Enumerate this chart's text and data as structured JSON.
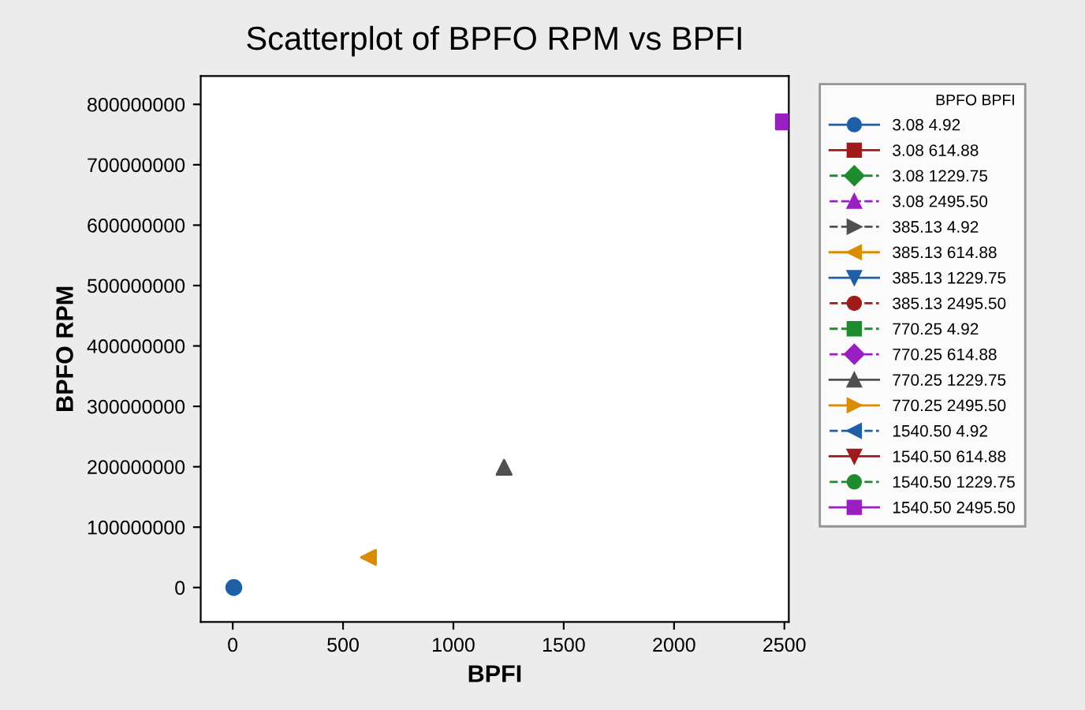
{
  "chart_data": {
    "type": "scatter",
    "title": "Scatterplot of BPFO RPM vs BPFI",
    "xlabel": "BPFI",
    "ylabel": "BPFO RPM",
    "legend_title": "BPFO BPFI",
    "legend": "right",
    "xlim": [
      -145,
      2520
    ],
    "xticks": [
      0,
      500,
      1000,
      1500,
      2000,
      2500
    ],
    "ylim": [
      -57000000,
      847000000
    ],
    "yticks": [
      0,
      100000000,
      200000000,
      300000000,
      400000000,
      500000000,
      600000000,
      700000000,
      800000000
    ],
    "series": [
      {
        "name": "3.08 4.92",
        "color": "#1f5fa8",
        "marker": "circle",
        "line_style": "solid",
        "x": [
          4.92
        ],
        "values": [
          0
        ]
      },
      {
        "name": "3.08 614.88",
        "color": "#a01c1c",
        "marker": "square",
        "line_style": "solid",
        "x": [
          null
        ],
        "values": [
          null
        ]
      },
      {
        "name": "3.08 1229.75",
        "color": "#1e8c2e",
        "marker": "diamond",
        "line_style": "dashed",
        "x": [
          null
        ],
        "values": [
          null
        ]
      },
      {
        "name": "3.08 2495.50",
        "color": "#9a1fc0",
        "marker": "triangle",
        "line_style": "dashed",
        "x": [
          null
        ],
        "values": [
          null
        ]
      },
      {
        "name": "385.13 4.92",
        "color": "#505050",
        "marker": "triangle_right",
        "line_style": "dashed",
        "x": [
          null
        ],
        "values": [
          null
        ]
      },
      {
        "name": "385.13 614.88",
        "color": "#d98c00",
        "marker": "triangle_left",
        "line_style": "solid",
        "x": [
          614.88
        ],
        "values": [
          50000000
        ]
      },
      {
        "name": "385.13 1229.75",
        "color": "#1f5fa8",
        "marker": "triangle_down",
        "line_style": "solid",
        "x": [
          null
        ],
        "values": [
          null
        ]
      },
      {
        "name": "385.13 2495.50",
        "color": "#a01c1c",
        "marker": "circle",
        "line_style": "dashed",
        "x": [
          null
        ],
        "values": [
          null
        ]
      },
      {
        "name": "770.25 4.92",
        "color": "#1e8c2e",
        "marker": "square",
        "line_style": "dashed",
        "x": [
          null
        ],
        "values": [
          null
        ]
      },
      {
        "name": "770.25 614.88",
        "color": "#9a1fc0",
        "marker": "diamond",
        "line_style": "dashed",
        "x": [
          null
        ],
        "values": [
          null
        ]
      },
      {
        "name": "770.25 1229.75",
        "color": "#505050",
        "marker": "triangle",
        "line_style": "solid",
        "x": [
          1229.75
        ],
        "values": [
          199000000
        ]
      },
      {
        "name": "770.25 2495.50",
        "color": "#d98c00",
        "marker": "triangle_right",
        "line_style": "solid",
        "x": [
          null
        ],
        "values": [
          null
        ]
      },
      {
        "name": "1540.50 4.92",
        "color": "#1f5fa8",
        "marker": "triangle_left",
        "line_style": "dashed",
        "x": [
          null
        ],
        "values": [
          null
        ]
      },
      {
        "name": "1540.50 614.88",
        "color": "#a01c1c",
        "marker": "triangle_down",
        "line_style": "solid",
        "x": [
          null
        ],
        "values": [
          null
        ]
      },
      {
        "name": "1540.50 1229.75",
        "color": "#1e8c2e",
        "marker": "circle",
        "line_style": "dashed",
        "x": [
          null
        ],
        "values": [
          null
        ]
      },
      {
        "name": "1540.50 2495.50",
        "color": "#9a1fc0",
        "marker": "square",
        "line_style": "solid",
        "x": [
          2495.5
        ],
        "values": [
          771000000
        ]
      }
    ]
  }
}
